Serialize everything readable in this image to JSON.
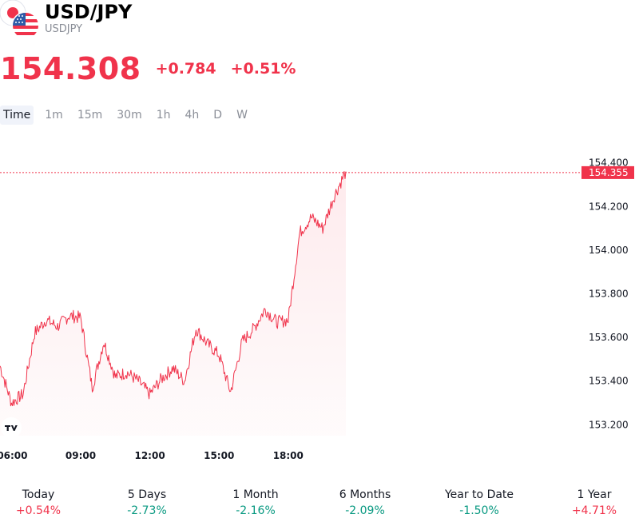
{
  "header": {
    "symbol": "USD/JPY",
    "ticker": "USDJPY",
    "price": "154.308",
    "change": "+0.784",
    "change_pct": "+0.51%"
  },
  "tabs": [
    "Time",
    "1m",
    "15m",
    "30m",
    "1h",
    "4h",
    "D",
    "W"
  ],
  "active_tab": "Time",
  "colors": {
    "up": "#089981",
    "down": "#f0334b",
    "line": "#f0334b",
    "text": "#131722",
    "muted": "#8a8e97"
  },
  "icons": {
    "base_flag": "usa-flag-icon",
    "quote_flag": "japan-flag-icon",
    "logo": "tradingview-logo-icon"
  },
  "chart_data": {
    "type": "area",
    "x_ticks": [
      "06:00",
      "09:00",
      "12:00",
      "15:00",
      "18:00"
    ],
    "y_ticks": [
      "153.200",
      "153.400",
      "153.600",
      "153.800",
      "154.000",
      "154.200",
      "154.400"
    ],
    "ylim": [
      153.15,
      154.45
    ],
    "last_price_label": "154.355",
    "last_price": 154.355,
    "series": [
      {
        "x": [
          "05:30",
          "06:00",
          "06:30",
          "07:00",
          "07:30",
          "08:00",
          "08:30",
          "09:00",
          "09:30",
          "10:00",
          "10:30",
          "11:00",
          "11:30",
          "12:00",
          "12:30",
          "13:00",
          "13:30",
          "14:00",
          "14:30",
          "15:00",
          "15:30",
          "16:00",
          "16:30",
          "17:00",
          "17:30",
          "18:00",
          "18:30",
          "19:00",
          "19:30",
          "20:00",
          "20:30"
        ],
        "y": [
          153.47,
          153.3,
          153.34,
          153.62,
          153.68,
          153.65,
          153.7,
          153.69,
          153.37,
          153.58,
          153.42,
          153.44,
          153.4,
          153.34,
          153.41,
          153.46,
          153.4,
          153.64,
          153.57,
          153.52,
          153.35,
          153.58,
          153.64,
          153.73,
          153.67,
          153.68,
          154.08,
          154.15,
          154.1,
          154.25,
          154.36
        ]
      }
    ]
  },
  "performance": [
    {
      "label": "Today",
      "value": "+0.54%",
      "dir": "up"
    },
    {
      "label": "5 Days",
      "value": "-2.73%",
      "dir": "down"
    },
    {
      "label": "1 Month",
      "value": "-2.16%",
      "dir": "down"
    },
    {
      "label": "6 Months",
      "value": "-2.09%",
      "dir": "down"
    },
    {
      "label": "Year to Date",
      "value": "-1.50%",
      "dir": "down"
    },
    {
      "label": "1 Year",
      "value": "+4.71%",
      "dir": "up"
    }
  ]
}
